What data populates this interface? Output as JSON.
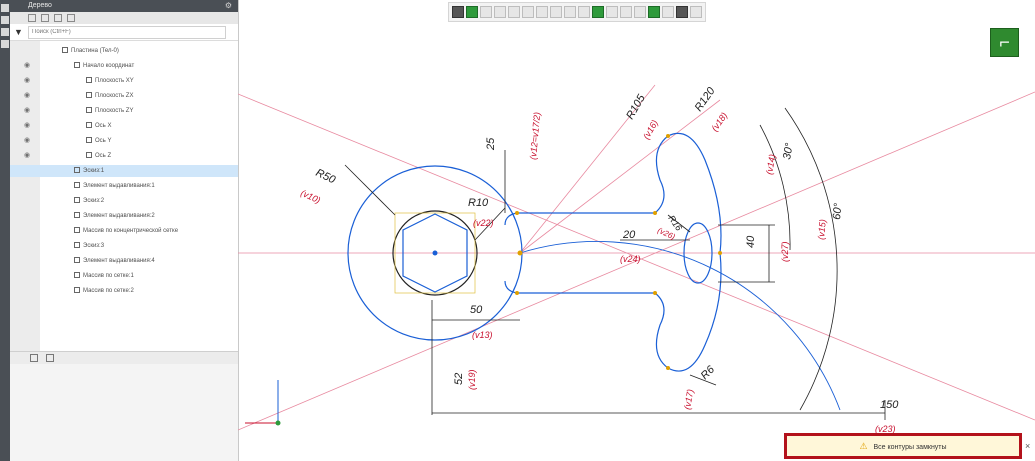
{
  "app": {
    "panel_title": "Дерево",
    "search_placeholder": "Поиск (Ctrl+F)"
  },
  "tree": {
    "items": [
      {
        "label": "Пластина (Тел-0)",
        "indent": 1
      },
      {
        "label": "Начало координат",
        "indent": 2
      },
      {
        "label": "Плоскость XY",
        "indent": 3
      },
      {
        "label": "Плоскость ZX",
        "indent": 3
      },
      {
        "label": "Плоскость ZY",
        "indent": 3
      },
      {
        "label": "Ось X",
        "indent": 3
      },
      {
        "label": "Ось Y",
        "indent": 3
      },
      {
        "label": "Ось Z",
        "indent": 3
      },
      {
        "label": "Эскиз:1",
        "indent": 2
      },
      {
        "label": "Элемент выдавливания:1",
        "indent": 2
      },
      {
        "label": "Эскиз:2",
        "indent": 2
      },
      {
        "label": "Элемент выдавливания:2",
        "indent": 2
      },
      {
        "label": "Массив по концентрической сетке",
        "indent": 2
      },
      {
        "label": "Эскиз:3",
        "indent": 2
      },
      {
        "label": "Элемент выдавливания:4",
        "indent": 2
      },
      {
        "label": "Массив по сетке:1",
        "indent": 2
      },
      {
        "label": "Массив по сетке:2",
        "indent": 2
      }
    ]
  },
  "dimensions": {
    "r105": "R105",
    "v16": "(v16)",
    "r120": "R120",
    "v18": "(v18)",
    "v12": "(v12=v17/2)",
    "d25": "25",
    "r50": "R50",
    "v10": "(v10)",
    "r10": "R10",
    "v22": "(v22)",
    "r16": "R16",
    "v26": "(v26)",
    "d20": "20",
    "v24": "(v24)",
    "d40": "40",
    "v27": "(v27)",
    "d30": "30°",
    "v14": "(v14)",
    "d60": "60°",
    "v15": "(v15)",
    "d50": "50",
    "v13": "(v13)",
    "d52": "52",
    "v19": "(v19)",
    "r6": "R6",
    "v17": "(v17)",
    "d150": "150",
    "v23": "(v23)"
  },
  "notification": {
    "message": "Все контуры замкнуты"
  },
  "colors": {
    "sketch_blue": "#1a5fd6",
    "dimension_red": "#c8102e",
    "dimension_black": "#222222",
    "notification_border": "#b3121b"
  }
}
